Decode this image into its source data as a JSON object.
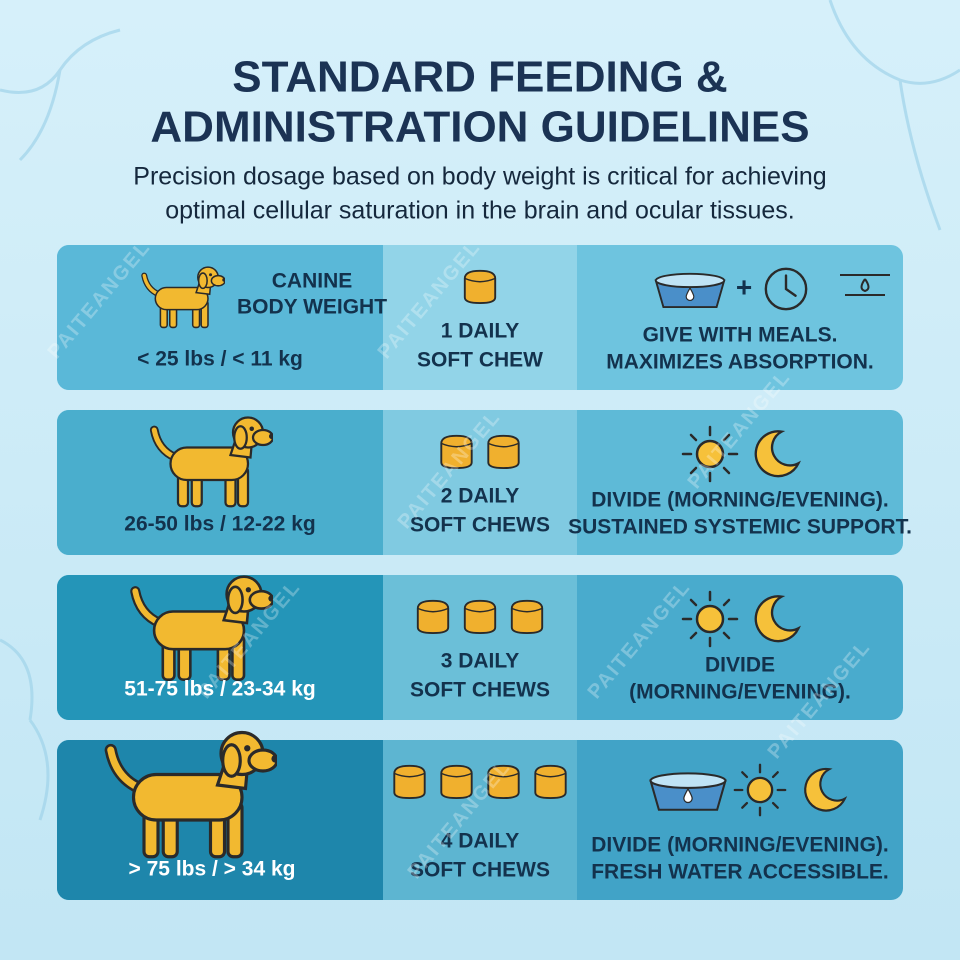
{
  "header": {
    "title": [
      "STANDARD FEEDING &",
      "ADMINISTRATION GUIDELINES"
    ],
    "subtitle": [
      "Precision dosage based on body weight is critical for achieving",
      "optimal cellular saturation in the brain and ocular tissues."
    ]
  },
  "table": {
    "weight_heading": [
      "CANINE",
      "BODY WEIGHT"
    ],
    "rows": [
      {
        "weight": "< 25 lbs / < 11 kg",
        "dose": [
          "1 DAILY",
          "SOFT CHEW"
        ],
        "instructions": [
          "GIVE WITH MEALS.",
          "MAXIMIZES ABSORPTION."
        ]
      },
      {
        "weight": "26-50 lbs / 12-22 kg",
        "dose": [
          "2 DAILY",
          "SOFT CHEWS"
        ],
        "instructions": [
          "DIVIDE (MORNING/EVENING).",
          "SUSTAINED SYSTEMIC SUPPORT."
        ]
      },
      {
        "weight": "51-75 lbs / 23-34 kg",
        "dose": [
          "3 DAILY",
          "SOFT CHEWS"
        ],
        "instructions": [
          "DIVIDE",
          "(MORNING/EVENING)."
        ]
      },
      {
        "weight": "> 75 lbs / > 34 kg",
        "dose": [
          "4 DAILY",
          "SOFT CHEWS"
        ],
        "instructions": [
          "DIVIDE (MORNING/EVENING).",
          "FRESH WATER ACCESSIBLE."
        ]
      }
    ]
  },
  "watermark": "PAITEANGEL"
}
